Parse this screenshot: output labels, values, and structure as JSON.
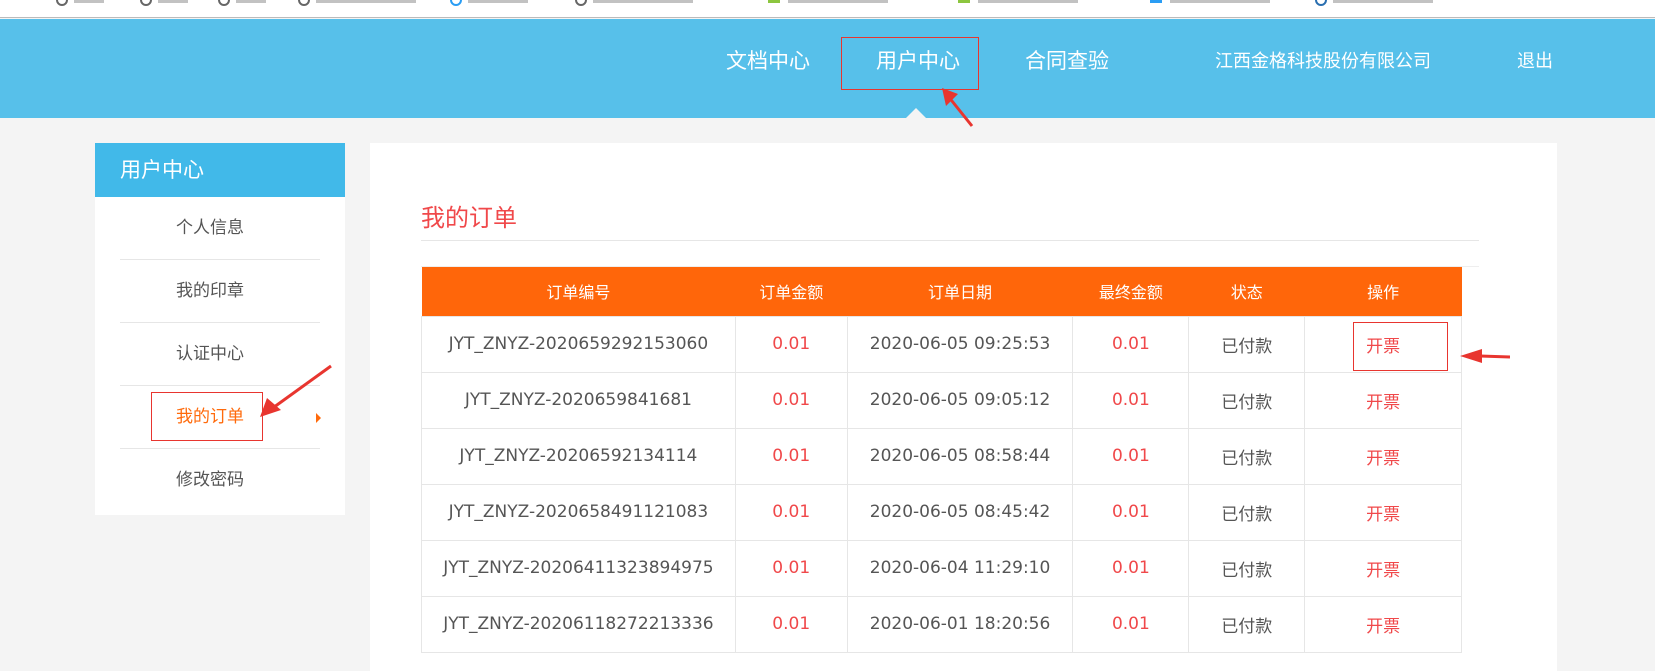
{
  "header": {
    "nav": [
      "文档中心",
      "用户中心",
      "合同查验"
    ],
    "active": "用户中心",
    "company": "江西金格科技股份有限公司",
    "logout": "退出",
    "color": "#57c0ea"
  },
  "sidebar": {
    "title": "用户中心",
    "items": [
      "个人信息",
      "我的印章",
      "认证中心",
      "我的订单",
      "修改密码"
    ],
    "active": "我的订单"
  },
  "main": {
    "title": "我的订单",
    "columns": [
      "订单编号",
      "订单金额",
      "订单日期",
      "最终金额",
      "状态",
      "操作"
    ],
    "rows": [
      [
        "JYT_ZNYZ-2020659292153060",
        "0.01",
        "2020-06-05 09:25:53",
        "0.01",
        "已付款",
        "开票"
      ],
      [
        "JYT_ZNYZ-2020659841681",
        "0.01",
        "2020-06-05 09:05:12",
        "0.01",
        "已付款",
        "开票"
      ],
      [
        "JYT_ZNYZ-20206592134114",
        "0.01",
        "2020-06-05 08:58:44",
        "0.01",
        "已付款",
        "开票"
      ],
      [
        "JYT_ZNYZ-2020658491121083",
        "0.01",
        "2020-06-05 08:45:42",
        "0.01",
        "已付款",
        "开票"
      ],
      [
        "JYT_ZNYZ-20206411323894975",
        "0.01",
        "2020-06-04 11:29:10",
        "0.01",
        "已付款",
        "开票"
      ],
      [
        "JYT_ZNYZ-20206118272213336",
        "0.01",
        "2020-06-01 18:20:56",
        "0.01",
        "已付款",
        "开票"
      ]
    ]
  },
  "colors": {
    "accent": "#ff660a",
    "money": "#f0484a",
    "annotation": "#e8352f"
  }
}
